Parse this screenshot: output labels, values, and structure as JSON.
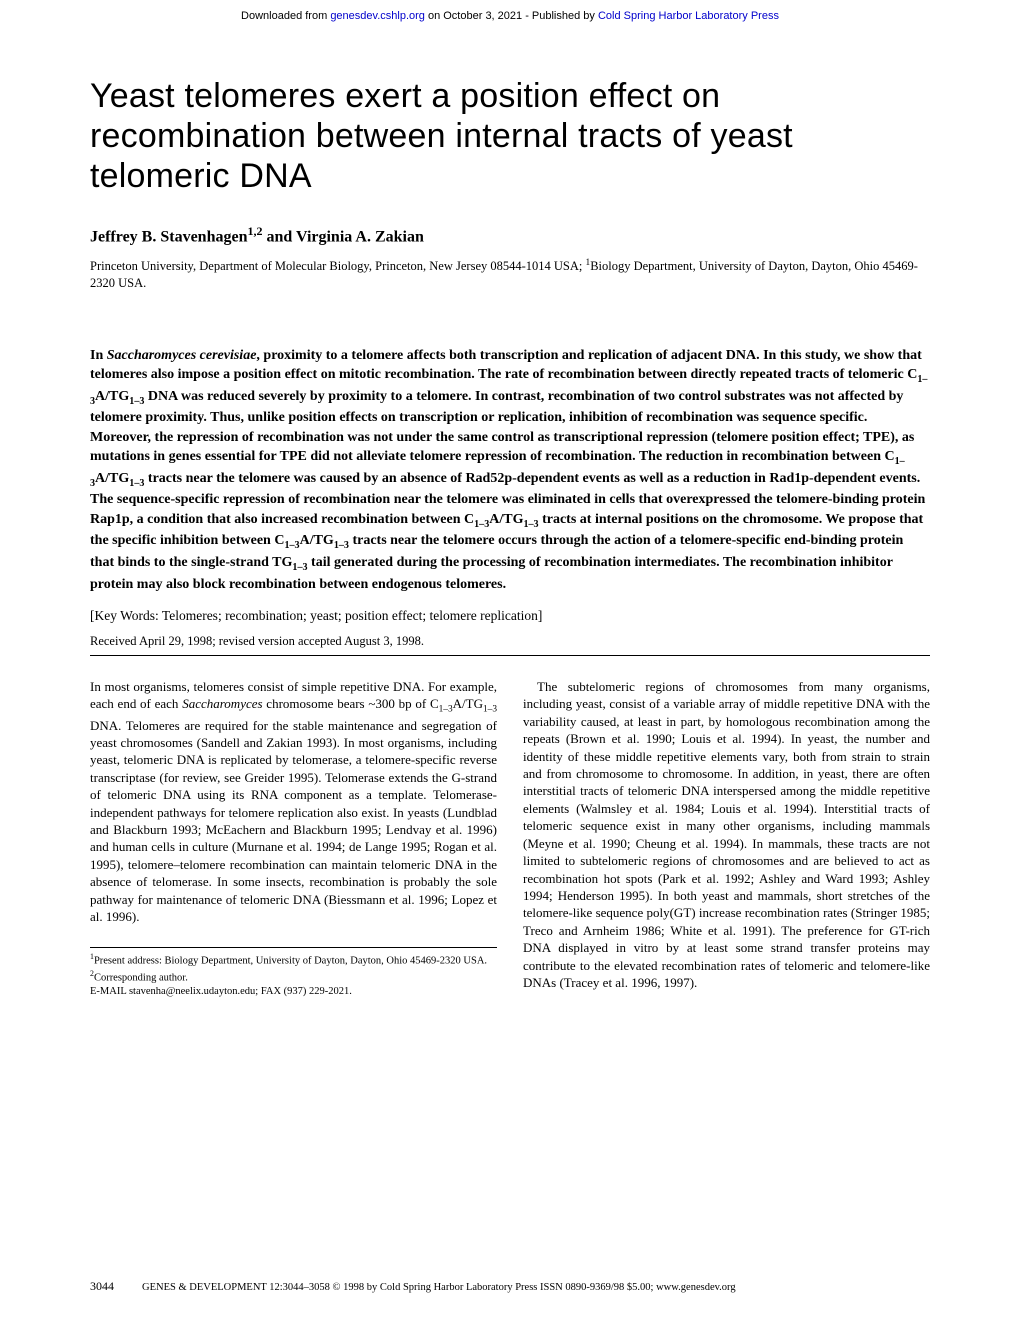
{
  "download_bar": {
    "prefix": "Downloaded from ",
    "link1": "genesdev.cshlp.org",
    "mid": " on October 3, 2021 - Published by ",
    "link2": "Cold Spring Harbor Laboratory Press"
  },
  "title": "Yeast telomeres exert a position effect on recombination between internal tracts of yeast telomeric DNA",
  "authors_html": "Jeffrey B. Stavenhagen<sup>1,2</sup> and Virginia A. Zakian",
  "affiliations_html": "Princeton University, Department of Molecular Biology, Princeton, New Jersey 08544-1014 USA; <sup>1</sup>Biology Department, University of Dayton, Dayton, Ohio 45469-2320 USA.",
  "abstract_html": "In <i>Saccharomyces cerevisiae</i>, proximity to a telomere affects both transcription and replication of adjacent DNA. In this study, we show that telomeres also impose a position effect on mitotic recombination. The rate of recombination between directly repeated tracts of telomeric C<sub>1–3</sub>A/TG<sub>1–3</sub> DNA was reduced severely by proximity to a telomere. In contrast, recombination of two control substrates was not affected by telomere proximity. Thus, unlike position effects on transcription or replication, inhibition of recombination was sequence specific. Moreover, the repression of recombination was not under the same control as transcriptional repression (telomere position effect; TPE), as mutations in genes essential for TPE did not alleviate telomere repression of recombination. The reduction in recombination between C<sub>1–3</sub>A/TG<sub>1–3</sub> tracts near the telomere was caused by an absence of Rad52p-dependent events as well as a reduction in Rad1p-dependent events. The sequence-specific repression of recombination near the telomere was eliminated in cells that overexpressed the telomere-binding protein Rap1p, a condition that also increased recombination between C<sub>1–3</sub>A/TG<sub>1–3</sub> tracts at internal positions on the chromosome. We propose that the specific inhibition between C<sub>1–3</sub>A/TG<sub>1–3</sub> tracts near the telomere occurs through the action of a telomere-specific end-binding protein that binds to the single-strand TG<sub>1–3</sub> tail generated during the processing of recombination intermediates. The recombination inhibitor protein may also block recombination between endogenous telomeres.",
  "keywords": "[Key Words: Telomeres; recombination; yeast; position effect; telomere replication]",
  "received": "Received April 29, 1998; revised version accepted August 3, 1998.",
  "col1_p1_html": "In most organisms, telomeres consist of simple repetitive DNA. For example, each end of each <i>Saccharomyces</i> chromosome bears ~300 bp of C<sub>1–3</sub>A/TG<sub>1–3</sub> DNA. Telomeres are required for the stable maintenance and segregation of yeast chromosomes (Sandell and Zakian 1993). In most organisms, including yeast, telomeric DNA is replicated by telomerase, a telomere-specific reverse transcriptase (for review, see Greider 1995). Telomerase extends the G-strand of telomeric DNA using its RNA component as a template. Telomerase-independent pathways for telomere replication also exist. In yeasts (Lundblad and Blackburn 1993; McEachern and Blackburn 1995; Lendvay et al. 1996) and human cells in culture (Murnane et al. 1994; de Lange 1995; Rogan et al. 1995), telomere–telomere recombination can maintain telomeric DNA in the absence of telomerase. In some insects, recombination is probably the sole pathway for maintenance of telomeric DNA (Biessmann et al. 1996; Lopez et al. 1996).",
  "col2_p1_html": "The subtelomeric regions of chromosomes from many organisms, including yeast, consist of a variable array of middle repetitive DNA with the variability caused, at least in part, by homologous recombination among the repeats (Brown et al. 1990; Louis et al. 1994). In yeast, the number and identity of these middle repetitive elements vary, both from strain to strain and from chromosome to chromosome. In addition, in yeast, there are often interstitial tracts of telomeric DNA interspersed among the middle repetitive elements (Walmsley et al. 1984; Louis et al. 1994). Interstitial tracts of telomeric sequence exist in many other organisms, including mammals (Meyne et al. 1990; Cheung et al. 1994). In mammals, these tracts are not limited to subtelomeric regions of chromosomes and are believed to act as recombination hot spots (Park et al. 1992; Ashley and Ward 1993; Ashley 1994; Henderson 1995). In both yeast and mammals, short stretches of the telomere-like sequence poly(GT) increase recombination rates (Stringer 1985; Treco and Arnheim 1986; White et al. 1991). The preference for GT-rich DNA displayed in vitro by at least some strand transfer proteins may contribute to the elevated recombination rates of telomeric and telomere-like DNAs (Tracey et al. 1996, 1997).",
  "footnotes_html": "<sup>1</sup>Present address: Biology Department, University of Dayton, Dayton, Ohio 45469-2320 USA.<br><sup>2</sup>Corresponding author.<br>E-MAIL stavenha@neelix.udayton.edu; FAX (937) 229-2021.",
  "footer": {
    "pagenum": "3044",
    "rest": "GENES & DEVELOPMENT 12:3044–3058 © 1998 by Cold Spring Harbor Laboratory Press ISSN 0890-9369/98 $5.00; www.genesdev.org"
  },
  "colors": {
    "link": "#0000cc",
    "text": "#000000",
    "background": "#ffffff"
  }
}
